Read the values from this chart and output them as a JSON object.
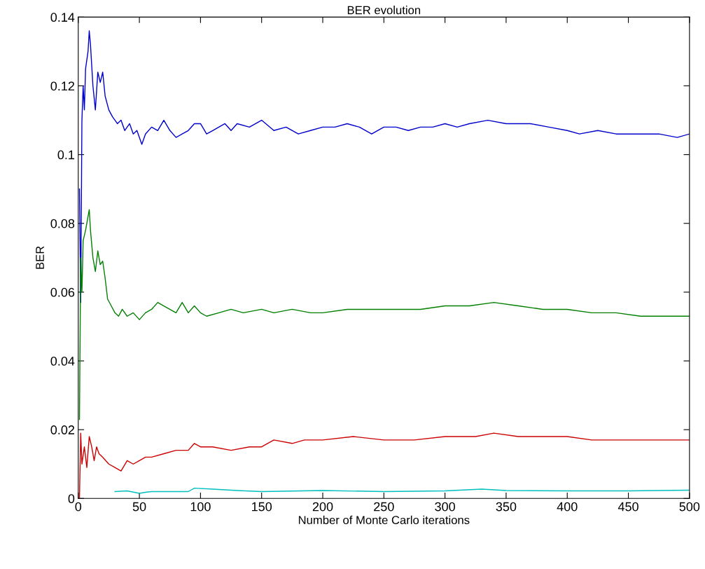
{
  "chart_data": {
    "type": "line",
    "title": "BER evolution",
    "xlabel": "Number of Monte Carlo iterations",
    "ylabel": "BER",
    "xlim": [
      0,
      500
    ],
    "ylim": [
      0,
      0.14
    ],
    "xticks": [
      0,
      50,
      100,
      150,
      200,
      250,
      300,
      350,
      400,
      450,
      500
    ],
    "yticks": [
      0,
      0.02,
      0.04,
      0.06,
      0.08,
      0.1,
      0.12,
      0.14
    ],
    "grid": false,
    "legend": false,
    "marker": "none",
    "line_style": "solid",
    "series": [
      {
        "color": "#0000cc",
        "x": [
          1,
          2,
          3,
          4,
          5,
          6,
          8,
          9,
          10,
          12,
          14,
          16,
          18,
          20,
          22,
          25,
          28,
          32,
          35,
          38,
          42,
          45,
          48,
          52,
          55,
          60,
          65,
          70,
          75,
          80,
          85,
          90,
          95,
          100,
          105,
          110,
          115,
          120,
          125,
          130,
          140,
          150,
          160,
          170,
          180,
          190,
          200,
          210,
          220,
          230,
          240,
          250,
          260,
          270,
          280,
          290,
          300,
          310,
          320,
          335,
          350,
          370,
          385,
          400,
          410,
          425,
          440,
          460,
          475,
          490,
          500
        ],
        "values": [
          0.09,
          0.057,
          0.11,
          0.12,
          0.113,
          0.125,
          0.13,
          0.136,
          0.132,
          0.12,
          0.113,
          0.124,
          0.121,
          0.124,
          0.117,
          0.113,
          0.111,
          0.109,
          0.11,
          0.107,
          0.109,
          0.106,
          0.107,
          0.103,
          0.106,
          0.108,
          0.107,
          0.11,
          0.107,
          0.105,
          0.106,
          0.107,
          0.109,
          0.109,
          0.106,
          0.107,
          0.108,
          0.109,
          0.107,
          0.109,
          0.108,
          0.11,
          0.107,
          0.108,
          0.106,
          0.107,
          0.108,
          0.108,
          0.109,
          0.108,
          0.106,
          0.108,
          0.108,
          0.107,
          0.108,
          0.108,
          0.109,
          0.108,
          0.109,
          0.11,
          0.109,
          0.109,
          0.108,
          0.107,
          0.106,
          0.107,
          0.106,
          0.106,
          0.106,
          0.105,
          0.106
        ]
      },
      {
        "color": "#007f00",
        "x": [
          1,
          2,
          3,
          4,
          6,
          8,
          9,
          10,
          12,
          14,
          16,
          18,
          20,
          22,
          24,
          27,
          30,
          33,
          36,
          40,
          45,
          50,
          55,
          60,
          65,
          70,
          80,
          85,
          90,
          95,
          100,
          105,
          115,
          125,
          135,
          150,
          160,
          175,
          190,
          200,
          220,
          240,
          260,
          280,
          300,
          320,
          340,
          360,
          380,
          400,
          420,
          440,
          460,
          480,
          490,
          500
        ],
        "values": [
          0.023,
          0.07,
          0.06,
          0.075,
          0.078,
          0.082,
          0.084,
          0.078,
          0.07,
          0.066,
          0.072,
          0.068,
          0.069,
          0.064,
          0.058,
          0.056,
          0.054,
          0.053,
          0.055,
          0.053,
          0.054,
          0.052,
          0.054,
          0.055,
          0.057,
          0.056,
          0.054,
          0.057,
          0.054,
          0.056,
          0.054,
          0.053,
          0.054,
          0.055,
          0.054,
          0.055,
          0.054,
          0.055,
          0.054,
          0.054,
          0.055,
          0.055,
          0.055,
          0.055,
          0.056,
          0.056,
          0.057,
          0.056,
          0.055,
          0.055,
          0.054,
          0.054,
          0.053,
          0.053,
          0.053,
          0.053
        ]
      },
      {
        "color": "#cc0000",
        "x": [
          1,
          2,
          3,
          5,
          7,
          9,
          11,
          13,
          15,
          17,
          20,
          25,
          30,
          35,
          40,
          45,
          50,
          55,
          60,
          70,
          80,
          90,
          95,
          100,
          110,
          125,
          140,
          150,
          160,
          175,
          185,
          200,
          225,
          250,
          275,
          300,
          325,
          340,
          360,
          380,
          400,
          420,
          450,
          480,
          500
        ],
        "values": [
          0,
          0.019,
          0.01,
          0.015,
          0.009,
          0.018,
          0.015,
          0.011,
          0.015,
          0.013,
          0.012,
          0.01,
          0.009,
          0.008,
          0.011,
          0.01,
          0.011,
          0.012,
          0.012,
          0.013,
          0.014,
          0.014,
          0.016,
          0.015,
          0.015,
          0.014,
          0.015,
          0.015,
          0.017,
          0.016,
          0.017,
          0.017,
          0.018,
          0.017,
          0.017,
          0.018,
          0.018,
          0.019,
          0.018,
          0.018,
          0.018,
          0.017,
          0.017,
          0.017,
          0.017
        ]
      },
      {
        "color": "#00bfbf",
        "x": [
          30,
          40,
          50,
          55,
          60,
          70,
          90,
          95,
          110,
          130,
          150,
          200,
          250,
          300,
          330,
          350,
          400,
          450,
          500
        ],
        "values": [
          0.002,
          0.0022,
          0.0015,
          0.0018,
          0.002,
          0.002,
          0.002,
          0.003,
          0.0027,
          0.0023,
          0.002,
          0.0023,
          0.002,
          0.0022,
          0.0027,
          0.0023,
          0.0022,
          0.0022,
          0.0024
        ]
      }
    ]
  }
}
